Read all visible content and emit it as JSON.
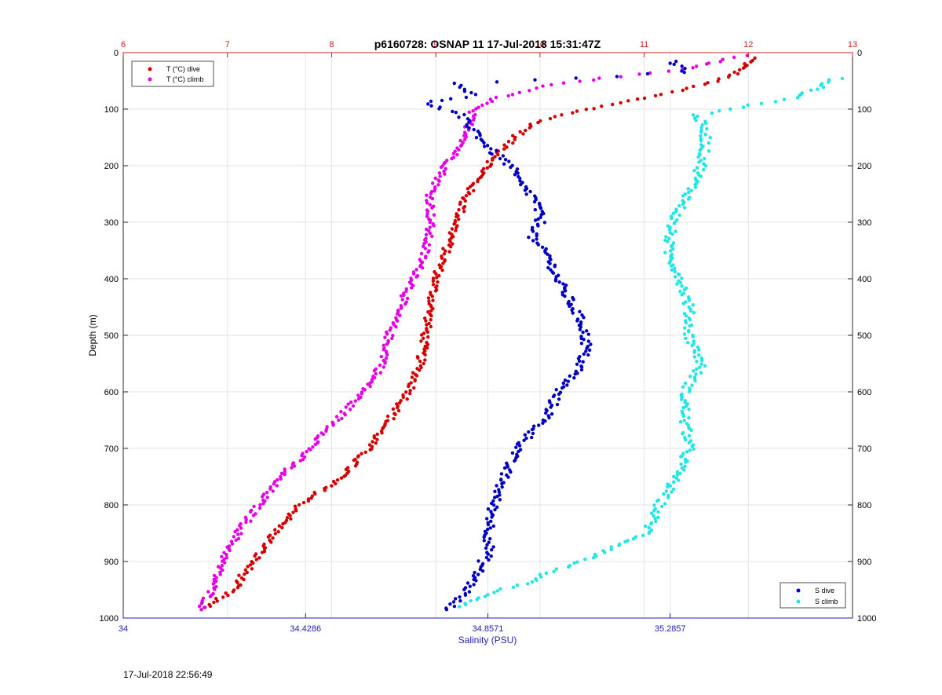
{
  "footer": {
    "timestamp": "17-Jul-2018 22:56:49"
  },
  "colors": {
    "t_dive": "#d40000",
    "t_climb": "#e600e6",
    "s_dive": "#0000c0",
    "s_climb": "#22e6e6",
    "top_axis": "#cc2222",
    "bottom_axis": "#1f1fb4",
    "grid": "#e3e3e3"
  },
  "chart_data": {
    "type": "scatter",
    "title": "p6160728: OSNAP 11 17-Jul-2018 15:31:47Z",
    "ylabel": "Depth (m)",
    "xlabel": "Salinity (PSU)",
    "y_reversed": true,
    "ylim": [
      0,
      1000
    ],
    "yticks": [
      "0",
      "100",
      "200",
      "300",
      "400",
      "500",
      "600",
      "700",
      "800",
      "900",
      "1000"
    ],
    "x_top": {
      "label": "",
      "lim": [
        6,
        13
      ],
      "ticks": [
        "6",
        "7",
        "8",
        "9",
        "10",
        "11",
        "12",
        "13"
      ]
    },
    "x_bottom": {
      "lim": [
        34,
        35.7143
      ],
      "ticks": [
        "34",
        "34.4286",
        "34.8571",
        "35.2857"
      ]
    },
    "grid": true,
    "legends": [
      {
        "placement": "top-left",
        "entries": [
          "T (°C) dive",
          "T (°C) climb"
        ]
      },
      {
        "placement": "bottom-right",
        "entries": [
          "S dive",
          "S climb"
        ]
      }
    ],
    "series": [
      {
        "name": "T (°C) dive",
        "axis": "top",
        "points": [
          [
            12.05,
            10
          ],
          [
            11.95,
            25
          ],
          [
            11.85,
            40
          ],
          [
            11.5,
            60
          ],
          [
            11.0,
            80
          ],
          [
            10.6,
            95
          ],
          [
            10.0,
            120
          ],
          [
            9.75,
            150
          ],
          [
            9.6,
            180
          ],
          [
            9.5,
            200
          ],
          [
            9.3,
            250
          ],
          [
            9.2,
            300
          ],
          [
            9.1,
            350
          ],
          [
            9.0,
            400
          ],
          [
            8.95,
            450
          ],
          [
            8.9,
            500
          ],
          [
            8.85,
            550
          ],
          [
            8.75,
            600
          ],
          [
            8.55,
            650
          ],
          [
            8.35,
            700
          ],
          [
            8.1,
            750
          ],
          [
            7.7,
            800
          ],
          [
            7.45,
            850
          ],
          [
            7.25,
            900
          ],
          [
            7.05,
            950
          ],
          [
            6.75,
            985
          ]
        ]
      },
      {
        "name": "T (°C) climb",
        "axis": "top",
        "points": [
          [
            11.95,
            5
          ],
          [
            11.7,
            15
          ],
          [
            11.4,
            30
          ],
          [
            10.6,
            45
          ],
          [
            10.0,
            60
          ],
          [
            9.6,
            80
          ],
          [
            9.35,
            100
          ],
          [
            9.3,
            150
          ],
          [
            9.1,
            200
          ],
          [
            8.95,
            250
          ],
          [
            8.95,
            300
          ],
          [
            8.9,
            350
          ],
          [
            8.8,
            400
          ],
          [
            8.65,
            450
          ],
          [
            8.55,
            500
          ],
          [
            8.5,
            550
          ],
          [
            8.3,
            600
          ],
          [
            8.05,
            650
          ],
          [
            7.8,
            700
          ],
          [
            7.5,
            750
          ],
          [
            7.3,
            800
          ],
          [
            7.1,
            850
          ],
          [
            6.95,
            900
          ],
          [
            6.85,
            950
          ],
          [
            6.75,
            985
          ]
        ]
      },
      {
        "name": "S dive",
        "axis": "bottom",
        "points": [
          [
            35.29,
            15
          ],
          [
            35.33,
            35
          ],
          [
            34.79,
            55
          ],
          [
            34.82,
            75
          ],
          [
            34.71,
            90
          ],
          [
            34.79,
            110
          ],
          [
            34.83,
            140
          ],
          [
            34.86,
            170
          ],
          [
            34.91,
            200
          ],
          [
            34.93,
            230
          ],
          [
            34.97,
            260
          ],
          [
            34.98,
            300
          ],
          [
            34.96,
            330
          ],
          [
            35.0,
            360
          ],
          [
            35.02,
            400
          ],
          [
            35.05,
            440
          ],
          [
            35.08,
            480
          ],
          [
            35.09,
            520
          ],
          [
            35.07,
            560
          ],
          [
            35.02,
            600
          ],
          [
            35.0,
            640
          ],
          [
            34.95,
            680
          ],
          [
            34.91,
            720
          ],
          [
            34.89,
            760
          ],
          [
            34.87,
            800
          ],
          [
            34.86,
            850
          ],
          [
            34.86,
            880
          ],
          [
            34.84,
            910
          ],
          [
            34.81,
            950
          ],
          [
            34.76,
            985
          ]
        ]
      },
      {
        "name": "S climb",
        "axis": "bottom",
        "points": [
          [
            35.68,
            45
          ],
          [
            35.58,
            80
          ],
          [
            35.35,
            110
          ],
          [
            35.37,
            150
          ],
          [
            35.36,
            200
          ],
          [
            35.33,
            250
          ],
          [
            35.29,
            300
          ],
          [
            35.28,
            350
          ],
          [
            35.31,
            400
          ],
          [
            35.33,
            450
          ],
          [
            35.33,
            500
          ],
          [
            35.36,
            550
          ],
          [
            35.32,
            600
          ],
          [
            35.32,
            650
          ],
          [
            35.33,
            700
          ],
          [
            35.3,
            750
          ],
          [
            35.26,
            800
          ],
          [
            35.23,
            850
          ],
          [
            35.11,
            890
          ],
          [
            35.0,
            920
          ],
          [
            34.94,
            940
          ],
          [
            34.86,
            955
          ],
          [
            34.81,
            970
          ],
          [
            34.79,
            980
          ]
        ]
      }
    ]
  }
}
